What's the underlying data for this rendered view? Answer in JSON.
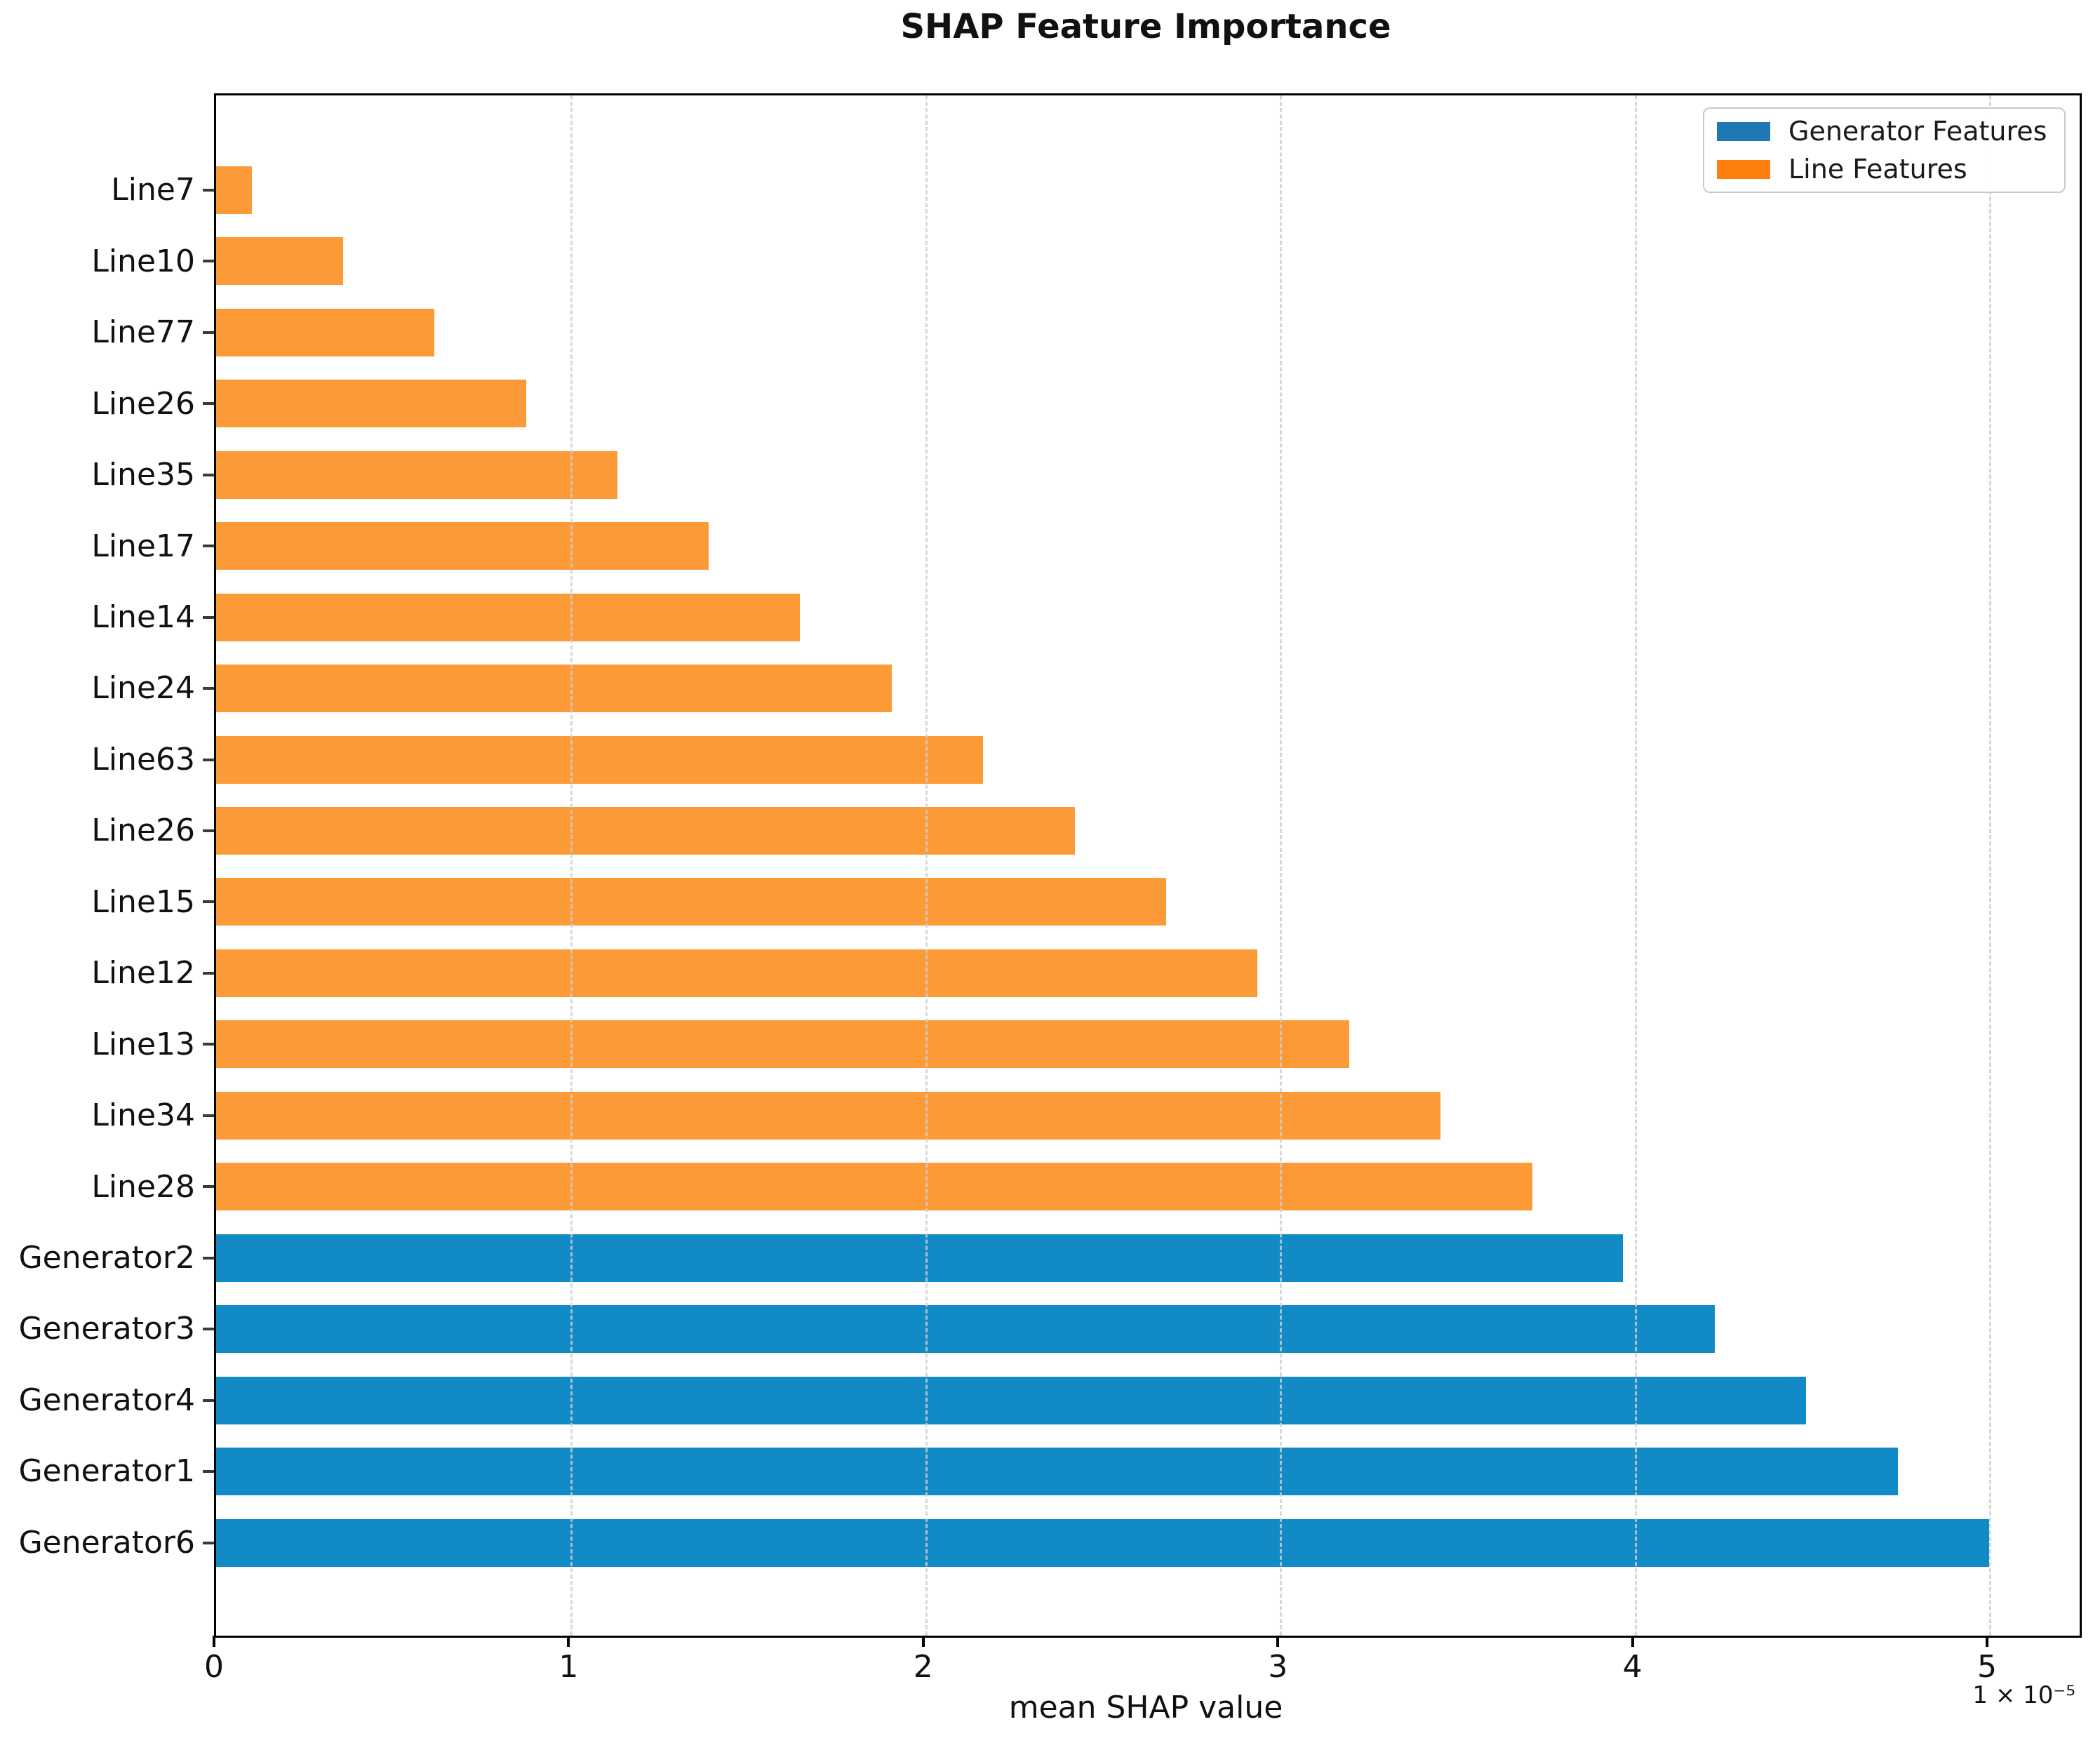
{
  "chart_data": {
    "type": "bar",
    "orientation": "horizontal",
    "title": "SHAP Feature Importance",
    "xlabel": "mean SHAP value",
    "x_offset_label": "1 × 10⁻⁵",
    "value_scale": "1e-5",
    "xlim": [
      0,
      5.256
    ],
    "xticks": [
      0,
      1,
      2,
      3,
      4,
      5
    ],
    "grid": "vertical-dashed",
    "legend_position": "upper-right",
    "categories": [
      "Line7",
      "Line10",
      "Line77",
      "Line26",
      "Line35",
      "Line17",
      "Line14",
      "Line24",
      "Line63",
      "Line26",
      "Line15",
      "Line12",
      "Line13",
      "Line34",
      "Line28",
      "Generator2",
      "Generator3",
      "Generator4",
      "Generator1",
      "Generator6"
    ],
    "values": [
      0.1,
      0.358,
      0.616,
      0.874,
      1.132,
      1.389,
      1.647,
      1.905,
      2.163,
      2.421,
      2.679,
      2.937,
      3.195,
      3.453,
      3.711,
      3.968,
      4.226,
      4.484,
      4.742,
      5.0
    ],
    "groups": [
      "line",
      "line",
      "line",
      "line",
      "line",
      "line",
      "line",
      "line",
      "line",
      "line",
      "line",
      "line",
      "line",
      "line",
      "line",
      "generator",
      "generator",
      "generator",
      "generator",
      "generator"
    ],
    "legend": [
      {
        "label": "Generator Features",
        "color": "#1F77B4"
      },
      {
        "label": "Line Features",
        "color": "#FF7F0E"
      }
    ],
    "colors": {
      "generator_bar": "#128AC5",
      "line_bar": "#FD9A38",
      "grid": "#CFCFCF",
      "spine": "#000000"
    }
  }
}
